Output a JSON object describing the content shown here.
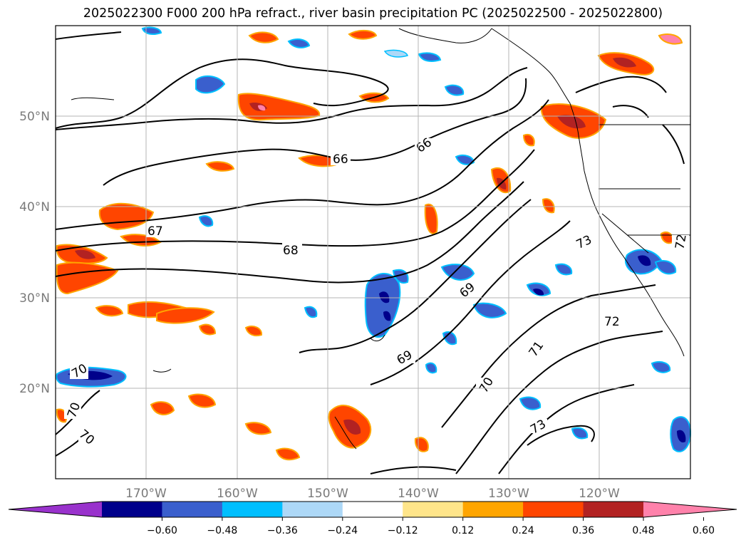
{
  "title": "2025022300 F000 200 hPa refract., river basin precipitation PC (2025022500 - 2025022800)",
  "map": {
    "lon_labels": [
      "170°W",
      "160°W",
      "150°W",
      "140°W",
      "130°W",
      "120°W"
    ],
    "lat_labels": [
      "50°N",
      "40°N",
      "30°N",
      "20°N"
    ]
  },
  "contour_labels": [
    "66",
    "66",
    "67",
    "68",
    "69",
    "69",
    "70",
    "70",
    "70",
    "70",
    "71",
    "72",
    "73",
    "73",
    "72"
  ],
  "colorbar": {
    "colors": [
      "#9932cc",
      "#00008b",
      "#3a5fcd",
      "#00bfff",
      "#add8f7",
      "#ffffff",
      "#ffe58a",
      "#ffa500",
      "#ff4500",
      "#b22222",
      "#ff82ab"
    ],
    "tick_labels": [
      "−0.60",
      "−0.48",
      "−0.36",
      "−0.24",
      "−0.12",
      "0.12",
      "0.24",
      "0.36",
      "0.48",
      "0.60"
    ]
  }
}
